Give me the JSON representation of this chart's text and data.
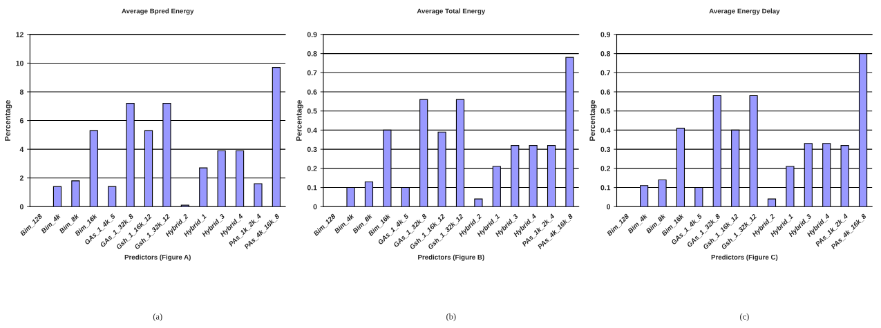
{
  "chart_data": [
    {
      "type": "bar",
      "title": "Average Bpred Energy",
      "xlabel": "Predictors (Figure A)",
      "ylabel": "Percentage",
      "categories": [
        "Bim_128",
        "Bim_4k",
        "Bim_8k",
        "Bim_16k",
        "GAs_1_4k_5",
        "GAs_1_32k_8",
        "Gsh_1_16k_12",
        "Gsh_1_32k_12",
        "Hybrid_2",
        "Hybrid_1",
        "Hybrid_3",
        "Hybrid_4",
        "PAs_1k_2k_4",
        "PAs_4k_16k_8"
      ],
      "values": [
        0,
        1.4,
        1.8,
        5.3,
        1.4,
        7.2,
        5.3,
        7.2,
        0.1,
        2.7,
        3.9,
        3.9,
        1.6,
        9.7
      ],
      "color": "#9999ff",
      "ylim": [
        0,
        12
      ],
      "yticks": [
        0,
        2,
        4,
        6,
        8,
        10,
        12
      ],
      "grid": "y",
      "annotations": [
        "(a)"
      ]
    },
    {
      "type": "bar",
      "title": "Average Total Energy",
      "xlabel": "Predictors (Figure B)",
      "ylabel": "Percentage",
      "categories": [
        "Bim_128",
        "Bim_4k",
        "Bim_8k",
        "Bim_16k",
        "GAs_1_4k_5",
        "GAs_1_32k_8",
        "Gsh_1_16k_12",
        "Gsh_1_32k_12",
        "Hybrid_2",
        "Hybrid_1",
        "Hybrid_3",
        "Hybrid_4",
        "PAs_1k_2k_4",
        "PAs_4k_16k_8"
      ],
      "values": [
        0,
        0.1,
        0.13,
        0.4,
        0.1,
        0.56,
        0.39,
        0.56,
        0.04,
        0.21,
        0.32,
        0.32,
        0.32,
        0.78
      ],
      "color": "#9999ff",
      "ylim": [
        0,
        0.9
      ],
      "yticks": [
        0,
        0.1,
        0.2,
        0.3,
        0.4,
        0.5,
        0.6,
        0.7,
        0.8,
        0.9
      ],
      "grid": "y",
      "annotations": [
        "(b)"
      ]
    },
    {
      "type": "bar",
      "title": "Average Energy Delay",
      "xlabel": "Predictors (Figure C)",
      "ylabel": "Percentage",
      "categories": [
        "Bim_128",
        "Bim_4k",
        "Bim_8k",
        "Bim_16k",
        "GAs_1_4k_5",
        "GAs_1_32k_8",
        "Gsh_1_16k_12",
        "Gsh_1_32k_12",
        "Hybrid_2",
        "Hybrid_1",
        "Hybrid_3",
        "Hybrid_4",
        "PAs_1k_2k_4",
        "PAs_4k_16k_8"
      ],
      "values": [
        0,
        0.11,
        0.14,
        0.41,
        0.1,
        0.58,
        0.4,
        0.58,
        0.04,
        0.21,
        0.33,
        0.33,
        0.32,
        0.8
      ],
      "color": "#9999ff",
      "ylim": [
        0,
        0.9
      ],
      "yticks": [
        0,
        0.1,
        0.2,
        0.3,
        0.4,
        0.5,
        0.6,
        0.7,
        0.8,
        0.9
      ],
      "grid": "y",
      "annotations": [
        "(c)"
      ]
    }
  ]
}
